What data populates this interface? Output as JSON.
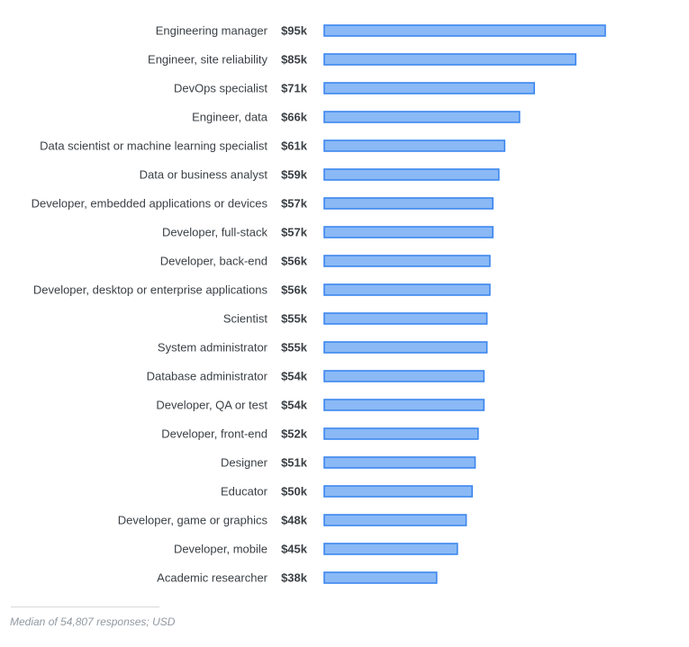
{
  "chart_data": {
    "type": "bar",
    "orientation": "horizontal",
    "categories": [
      "Engineering manager",
      "Engineer, site reliability",
      "DevOps specialist",
      "Engineer, data",
      "Data scientist or machine learning specialist",
      "Data or business analyst",
      "Developer, embedded applications or devices",
      "Developer, full-stack",
      "Developer, back-end",
      "Developer, desktop or enterprise applications",
      "Scientist",
      "System administrator",
      "Database administrator",
      "Developer, QA or test",
      "Developer, front-end",
      "Designer",
      "Educator",
      "Developer, game or graphics",
      "Developer, mobile",
      "Academic researcher"
    ],
    "values": [
      95,
      85,
      71,
      66,
      61,
      59,
      57,
      57,
      56,
      56,
      55,
      55,
      54,
      54,
      52,
      51,
      50,
      48,
      45,
      38
    ],
    "value_labels": [
      "$95k",
      "$85k",
      "$71k",
      "$66k",
      "$61k",
      "$59k",
      "$57k",
      "$57k",
      "$56k",
      "$56k",
      "$55k",
      "$55k",
      "$54k",
      "$54k",
      "$52k",
      "$51k",
      "$50k",
      "$48k",
      "$45k",
      "$38k"
    ],
    "unit": "USD (thousands)",
    "xlim": [
      0,
      95
    ],
    "grid": false,
    "legend": "none",
    "colors": {
      "bar_fill": "#8ab9f5",
      "bar_stroke": "#3d87ee",
      "label_text": "#3b4045",
      "footnote_text": "#9199a1"
    }
  },
  "footnote": {
    "text": "Median of 54,807 responses; USD"
  }
}
